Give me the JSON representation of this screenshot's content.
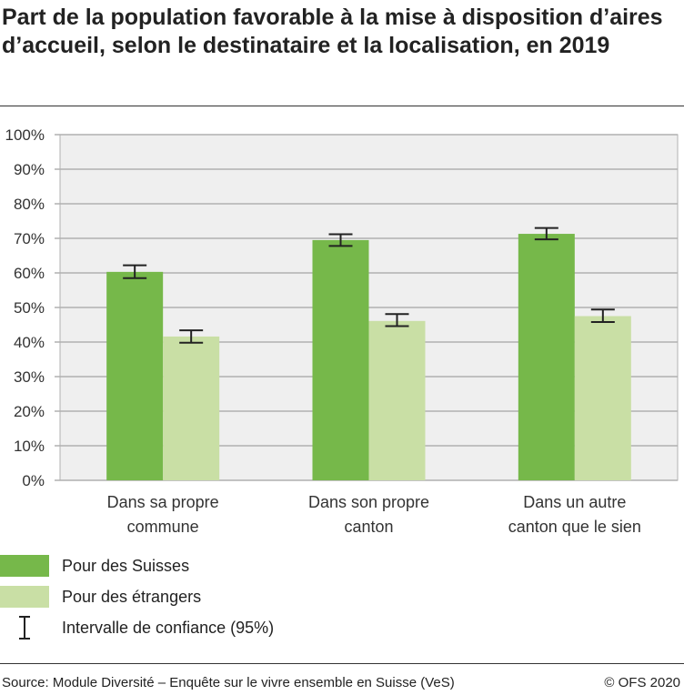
{
  "title": "Part de la population favorable à la mise à disposition d’aires d’accueil, selon le destinataire et la localisation, en 2019",
  "colors": {
    "suisses": "#76b84a",
    "etrangers": "#c9dfa5",
    "plot_bg": "#efefef",
    "grid": "#b0b0b0",
    "error": "#222222"
  },
  "chart_data": {
    "type": "bar",
    "categories": [
      [
        "Dans sa propre",
        "commune"
      ],
      [
        "Dans son propre",
        "canton"
      ],
      [
        "Dans un autre",
        "canton que le sien"
      ]
    ],
    "series": [
      {
        "name": "Pour des Suisses",
        "values": [
          60.3,
          69.5,
          71.3
        ],
        "ci_low": [
          58.5,
          67.8,
          69.7
        ],
        "ci_high": [
          62.2,
          71.2,
          73.0
        ]
      },
      {
        "name": "Pour des étrangers",
        "values": [
          41.6,
          46.1,
          47.5
        ],
        "ci_low": [
          39.8,
          44.6,
          45.8
        ],
        "ci_high": [
          43.4,
          48.1,
          49.4
        ]
      }
    ],
    "ylim": [
      0,
      100
    ],
    "yticks": [
      "0%",
      "10%",
      "20%",
      "30%",
      "40%",
      "50%",
      "60%",
      "70%",
      "80%",
      "90%",
      "100%"
    ],
    "grid": true,
    "legend_placement": "bottom-left",
    "ci_legend": "Intervalle de confiance (95%)"
  },
  "footer": {
    "source": "Source: Module Diversité – Enquête sur le vivre ensemble en Suisse (VeS)",
    "copyright": "© OFS 2020"
  }
}
